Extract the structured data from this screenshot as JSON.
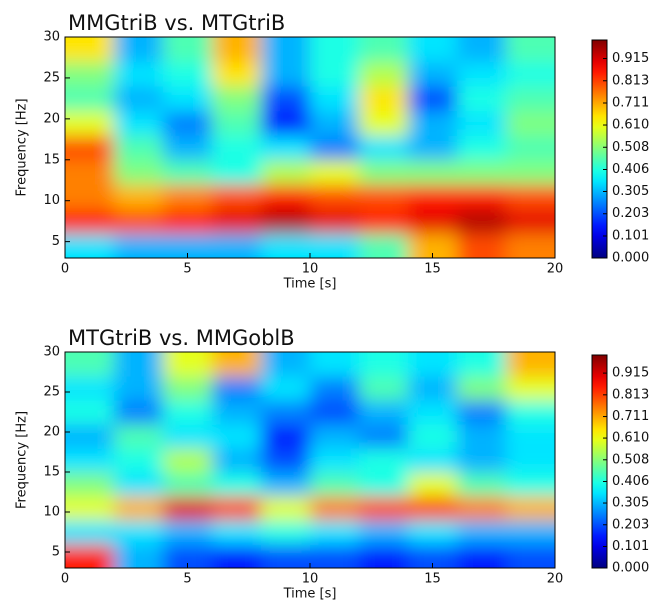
{
  "chart_data": [
    {
      "type": "heatmap",
      "title": "MMGtriB vs. MTGtriB",
      "x_label": "Time [s]",
      "y_label": "Frequency [Hz]",
      "xlim": [
        0,
        20
      ],
      "ylim": [
        3,
        30
      ],
      "xticks": [
        0,
        5,
        10,
        15,
        20
      ],
      "yticks": [
        5,
        10,
        15,
        20,
        25,
        30
      ],
      "x": [
        1,
        3,
        5,
        7,
        9,
        11,
        13,
        15,
        17,
        19
      ],
      "y": [
        4.5,
        7.5,
        10.5,
        13.5,
        16.5,
        19.5,
        22.5,
        25.5,
        28.5
      ],
      "z": [
        [
          0.35,
          0.3,
          0.3,
          0.3,
          0.35,
          0.35,
          0.45,
          0.7,
          0.8,
          0.75
        ],
        [
          0.85,
          0.8,
          0.85,
          0.9,
          0.95,
          0.9,
          0.85,
          0.9,
          0.95,
          0.9
        ],
        [
          0.75,
          0.7,
          0.75,
          0.8,
          0.85,
          0.8,
          0.8,
          0.85,
          0.85,
          0.8
        ],
        [
          0.75,
          0.5,
          0.45,
          0.4,
          0.55,
          0.6,
          0.5,
          0.5,
          0.5,
          0.5
        ],
        [
          0.8,
          0.45,
          0.3,
          0.4,
          0.35,
          0.25,
          0.35,
          0.3,
          0.4,
          0.45
        ],
        [
          0.6,
          0.35,
          0.25,
          0.45,
          0.15,
          0.3,
          0.6,
          0.3,
          0.35,
          0.5
        ],
        [
          0.45,
          0.3,
          0.35,
          0.5,
          0.2,
          0.35,
          0.65,
          0.2,
          0.4,
          0.45
        ],
        [
          0.5,
          0.35,
          0.4,
          0.65,
          0.3,
          0.4,
          0.55,
          0.3,
          0.35,
          0.4
        ],
        [
          0.65,
          0.3,
          0.45,
          0.7,
          0.3,
          0.4,
          0.45,
          0.35,
          0.3,
          0.45
        ]
      ],
      "clim": [
        0,
        1
      ],
      "cticks": [
        {
          "value": 0,
          "label": "0.000"
        },
        {
          "value": 0.101,
          "label": "0.101"
        },
        {
          "value": 0.203,
          "label": "0.203"
        },
        {
          "value": 0.305,
          "label": "0.305"
        },
        {
          "value": 0.406,
          "label": "0.406"
        },
        {
          "value": 0.508,
          "label": "0.508"
        },
        {
          "value": 0.61,
          "label": "0.610"
        },
        {
          "value": 0.711,
          "label": "0.711"
        },
        {
          "value": 0.813,
          "label": "0.813"
        },
        {
          "value": 0.915,
          "label": "0.915"
        }
      ]
    },
    {
      "type": "heatmap",
      "title": "MTGtriB vs. MMGoblB",
      "x_label": "Time [s]",
      "y_label": "Frequency [Hz]",
      "xlim": [
        0,
        20
      ],
      "ylim": [
        3,
        30
      ],
      "xticks": [
        0,
        5,
        10,
        15,
        20
      ],
      "yticks": [
        5,
        10,
        15,
        20,
        25,
        30
      ],
      "x": [
        1,
        3,
        5,
        7,
        9,
        11,
        13,
        15,
        17,
        19
      ],
      "y": [
        4.5,
        7.5,
        10.5,
        13.5,
        16.5,
        19.5,
        22.5,
        25.5,
        28.5
      ],
      "z": [
        [
          0.85,
          0.3,
          0.2,
          0.15,
          0.2,
          0.2,
          0.15,
          0.2,
          0.15,
          0.2
        ],
        [
          0.35,
          0.35,
          0.3,
          0.35,
          0.4,
          0.35,
          0.3,
          0.35,
          0.3,
          0.3
        ],
        [
          0.6,
          0.7,
          0.9,
          0.8,
          0.6,
          0.75,
          0.8,
          0.8,
          0.75,
          0.7
        ],
        [
          0.5,
          0.35,
          0.45,
          0.4,
          0.3,
          0.45,
          0.4,
          0.6,
          0.45,
          0.4
        ],
        [
          0.35,
          0.4,
          0.55,
          0.3,
          0.2,
          0.35,
          0.4,
          0.35,
          0.3,
          0.35
        ],
        [
          0.3,
          0.45,
          0.35,
          0.35,
          0.15,
          0.3,
          0.25,
          0.4,
          0.3,
          0.35
        ],
        [
          0.4,
          0.25,
          0.4,
          0.3,
          0.25,
          0.2,
          0.3,
          0.35,
          0.25,
          0.4
        ],
        [
          0.35,
          0.3,
          0.5,
          0.25,
          0.35,
          0.25,
          0.45,
          0.3,
          0.5,
          0.6
        ],
        [
          0.45,
          0.3,
          0.6,
          0.7,
          0.3,
          0.35,
          0.4,
          0.35,
          0.4,
          0.7
        ]
      ],
      "clim": [
        0,
        1
      ],
      "cticks": [
        {
          "value": 0,
          "label": "0.000"
        },
        {
          "value": 0.101,
          "label": "0.101"
        },
        {
          "value": 0.203,
          "label": "0.203"
        },
        {
          "value": 0.305,
          "label": "0.305"
        },
        {
          "value": 0.406,
          "label": "0.406"
        },
        {
          "value": 0.508,
          "label": "0.508"
        },
        {
          "value": 0.61,
          "label": "0.610"
        },
        {
          "value": 0.711,
          "label": "0.711"
        },
        {
          "value": 0.813,
          "label": "0.813"
        },
        {
          "value": 0.915,
          "label": "0.915"
        }
      ]
    }
  ]
}
